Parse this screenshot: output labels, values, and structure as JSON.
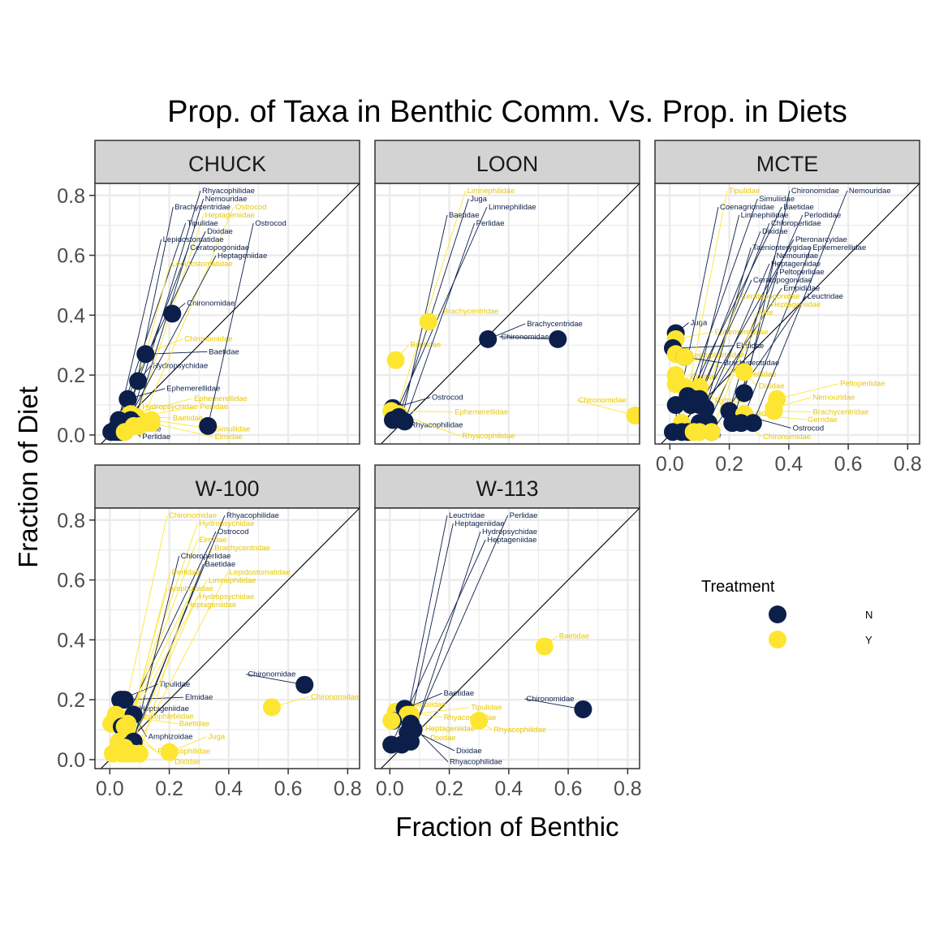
{
  "chart_data": {
    "type": "scatter",
    "title": "Prop. of Taxa in Benthic Comm. Vs. Prop. in Diets",
    "xlabel": "Fraction of Benthic",
    "ylabel": "Fraction of Diet",
    "xlim": [
      -0.05,
      0.84
    ],
    "ylim": [
      -0.03,
      0.84
    ],
    "x_ticks": [
      "0.0",
      "0.2",
      "0.4",
      "0.6",
      "0.8"
    ],
    "y_ticks": [
      "0.0",
      "0.2",
      "0.4",
      "0.6",
      "0.8"
    ],
    "reference_line": "y = x",
    "grid": true,
    "legend": {
      "title": "Treatment",
      "position": "right",
      "entries": [
        {
          "label": "N",
          "color": "#0b1f4a"
        },
        {
          "label": "Y",
          "color": "#fde532"
        }
      ]
    },
    "colors": {
      "N": "#0b1f4a",
      "Y": "#fde532",
      "strip": "#d3d3d3",
      "grid": "#ebebeb",
      "panel_border": "#333333"
    },
    "panels": [
      {
        "name": "CHUCK",
        "points": [
          {
            "label": "Chironomidae",
            "x": 0.21,
            "y": 0.405,
            "t": "N"
          },
          {
            "label": "Chironomidae",
            "x": 0.12,
            "y": 0.27,
            "t": "Y"
          },
          {
            "label": "Baetidae",
            "x": 0.12,
            "y": 0.27,
            "t": "N"
          },
          {
            "label": "Perlidae",
            "x": 0.09,
            "y": 0.06,
            "t": "Y"
          },
          {
            "label": "Baetidae",
            "x": 0.08,
            "y": 0.06,
            "t": "Y"
          },
          {
            "label": "Hydropsychidae",
            "x": 0.095,
            "y": 0.18,
            "t": "N"
          },
          {
            "label": "Ephemerellidae",
            "x": 0.06,
            "y": 0.12,
            "t": "N"
          },
          {
            "label": "Ephemerellidae",
            "x": 0.07,
            "y": 0.07,
            "t": "Y"
          },
          {
            "label": "Hydropsychidae",
            "x": 0.06,
            "y": 0.06,
            "t": "Y"
          },
          {
            "label": "Elmidae",
            "x": 0.03,
            "y": 0.05,
            "t": "N"
          },
          {
            "label": "Rhyacophilidae",
            "x": 0.07,
            "y": 0.05,
            "t": "N"
          },
          {
            "label": "Nemouridae",
            "x": 0.08,
            "y": 0.04,
            "t": "N"
          },
          {
            "label": "Perlidae",
            "x": 0.06,
            "y": 0.04,
            "t": "N"
          },
          {
            "label": "Brachycentridae",
            "x": 0.06,
            "y": 0.03,
            "t": "N"
          },
          {
            "label": "Elmidae",
            "x": 0.14,
            "y": 0.04,
            "t": "Y"
          },
          {
            "label": "Simuliidae",
            "x": 0.14,
            "y": 0.05,
            "t": "Y"
          },
          {
            "label": "Ostrocod",
            "x": 0.33,
            "y": 0.03,
            "t": "N"
          },
          {
            "label": "Ostrocod",
            "x": 0.1,
            "y": 0.03,
            "t": "Y"
          },
          {
            "label": "Heptageniidae",
            "x": 0.08,
            "y": 0.03,
            "t": "Y"
          },
          {
            "label": "Tipulidae",
            "x": 0.02,
            "y": 0.02,
            "t": "N"
          },
          {
            "label": "Dixidae",
            "x": 0.005,
            "y": 0.01,
            "t": "N"
          },
          {
            "label": "Lepidostomatidae",
            "x": 0.02,
            "y": 0.01,
            "t": "N"
          },
          {
            "label": "Ceratopogonidae",
            "x": 0.03,
            "y": 0.01,
            "t": "N"
          },
          {
            "label": "Heptageniidae",
            "x": 0.04,
            "y": 0.01,
            "t": "N"
          },
          {
            "label": "Lepidostomatidae",
            "x": 0.05,
            "y": 0.01,
            "t": "Y"
          }
        ]
      },
      {
        "name": "LOON",
        "points": [
          {
            "label": "Brachycentridae",
            "x": 0.13,
            "y": 0.378,
            "t": "Y"
          },
          {
            "label": "Brachycentridae",
            "x": 0.33,
            "y": 0.32,
            "t": "N"
          },
          {
            "label": "Chironomidae",
            "x": 0.565,
            "y": 0.32,
            "t": "N"
          },
          {
            "label": "Baetidae",
            "x": 0.02,
            "y": 0.25,
            "t": "Y"
          },
          {
            "label": "Ostrocod",
            "x": 0.01,
            "y": 0.09,
            "t": "N"
          },
          {
            "label": "Rhyacophilidae",
            "x": 0.02,
            "y": 0.08,
            "t": "N"
          },
          {
            "label": "Ephemerellidae",
            "x": 0.005,
            "y": 0.08,
            "t": "Y"
          },
          {
            "label": "Limnephilidae",
            "x": 0.02,
            "y": 0.07,
            "t": "Y"
          },
          {
            "label": "Rhyacophilidae",
            "x": 0.03,
            "y": 0.07,
            "t": "Y"
          },
          {
            "label": "Juga",
            "x": 0.03,
            "y": 0.06,
            "t": "N"
          },
          {
            "label": "Baetidae",
            "x": 0.04,
            "y": 0.05,
            "t": "N"
          },
          {
            "label": "Perlidae",
            "x": 0.05,
            "y": 0.045,
            "t": "N"
          },
          {
            "label": "Limnephilidae",
            "x": 0.01,
            "y": 0.05,
            "t": "N"
          },
          {
            "label": "Chironomidae",
            "x": 0.825,
            "y": 0.065,
            "t": "Y"
          }
        ]
      },
      {
        "name": "MCTE",
        "points": [
          {
            "label": "Juga",
            "x": 0.02,
            "y": 0.34,
            "t": "N"
          },
          {
            "label": "Ephemerellidae",
            "x": 0.02,
            "y": 0.32,
            "t": "Y"
          },
          {
            "label": "Elmidae",
            "x": 0.01,
            "y": 0.29,
            "t": "N"
          },
          {
            "label": "Leptophlebiidae",
            "x": 0.02,
            "y": 0.27,
            "t": "Y"
          },
          {
            "label": "Brachycentridae",
            "x": 0.05,
            "y": 0.26,
            "t": "N"
          },
          {
            "label": "Perlidae",
            "x": 0.05,
            "y": 0.26,
            "t": "Y"
          },
          {
            "label": "Ostrocod",
            "x": 0.02,
            "y": 0.2,
            "t": "Y"
          },
          {
            "label": "Simuliidae",
            "x": 0.02,
            "y": 0.2,
            "t": "Y"
          },
          {
            "label": "Dixidae",
            "x": 0.25,
            "y": 0.21,
            "t": "Y"
          },
          {
            "label": "Elmidae",
            "x": 0.02,
            "y": 0.17,
            "t": "Y"
          },
          {
            "label": "Baetidae",
            "x": 0.05,
            "y": 0.16,
            "t": "Y"
          },
          {
            "label": "Chironomidae",
            "x": 0.1,
            "y": 0.16,
            "t": "Y"
          },
          {
            "label": "Chironomidae",
            "x": 0.25,
            "y": 0.14,
            "t": "N"
          },
          {
            "label": "Simuliidae",
            "x": 0.06,
            "y": 0.13,
            "t": "N"
          },
          {
            "label": "Limnephilidae",
            "x": 0.08,
            "y": 0.12,
            "t": "N"
          },
          {
            "label": "Chloroperlidae",
            "x": 0.1,
            "y": 0.12,
            "t": "N"
          },
          {
            "label": "Baetidae",
            "x": 0.06,
            "y": 0.12,
            "t": "N"
          },
          {
            "label": "Peltoperlidae",
            "x": 0.36,
            "y": 0.12,
            "t": "Y"
          },
          {
            "label": "Tipulidae",
            "x": 0.02,
            "y": 0.1,
            "t": "N"
          },
          {
            "label": "Dixidae",
            "x": 0.07,
            "y": 0.1,
            "t": "N"
          },
          {
            "label": "Pteronarcyidae",
            "x": 0.1,
            "y": 0.1,
            "t": "N"
          },
          {
            "label": "Taeniopterygidae",
            "x": 0.12,
            "y": 0.09,
            "t": "N"
          },
          {
            "label": "Nemouridae",
            "x": 0.35,
            "y": 0.09,
            "t": "Y"
          },
          {
            "label": "Brachycentridae",
            "x": 0.35,
            "y": 0.08,
            "t": "Y"
          },
          {
            "label": "Ostrocod",
            "x": 0.2,
            "y": 0.08,
            "t": "N"
          },
          {
            "label": "Nemouridae",
            "x": 0.2,
            "y": 0.08,
            "t": "N"
          },
          {
            "label": "Gerridae",
            "x": 0.25,
            "y": 0.07,
            "t": "Y"
          },
          {
            "label": "Tipulidae",
            "x": 0.04,
            "y": 0.04,
            "t": "Y"
          },
          {
            "label": "Peltoperlidae",
            "x": 0.21,
            "y": 0.04,
            "t": "N"
          },
          {
            "label": "Ephemerellidae",
            "x": 0.24,
            "y": 0.04,
            "t": "N"
          },
          {
            "label": "Nemouridae",
            "x": 0.28,
            "y": 0.04,
            "t": "N"
          },
          {
            "label": "Perlodidae",
            "x": 0.13,
            "y": 0.04,
            "t": "N"
          },
          {
            "label": "Heptageniidae",
            "x": 0.1,
            "y": 0.04,
            "t": "N"
          },
          {
            "label": "Coenagrionidae",
            "x": 0.01,
            "y": 0.01,
            "t": "N"
          },
          {
            "label": "Ceratopogonidae",
            "x": 0.04,
            "y": 0.01,
            "t": "N"
          },
          {
            "label": "Empididae",
            "x": 0.06,
            "y": 0.01,
            "t": "N"
          },
          {
            "label": "Leuctridae",
            "x": 0.14,
            "y": 0.01,
            "t": "N"
          },
          {
            "label": "Mite",
            "x": 0.14,
            "y": 0.01,
            "t": "Y"
          },
          {
            "label": "Heptageniidae",
            "x": 0.1,
            "y": 0.01,
            "t": "Y"
          },
          {
            "label": "Ceratopogonidae",
            "x": 0.08,
            "y": 0.01,
            "t": "Y"
          }
        ]
      },
      {
        "name": "W-100",
        "points": [
          {
            "label": "Chironomidae",
            "x": 0.655,
            "y": 0.25,
            "t": "N"
          },
          {
            "label": "Chironomidae",
            "x": 0.545,
            "y": 0.175,
            "t": "Y"
          },
          {
            "label": "Elmidae",
            "x": 0.04,
            "y": 0.2,
            "t": "N"
          },
          {
            "label": "Tipulidae",
            "x": 0.035,
            "y": 0.2,
            "t": "N"
          },
          {
            "label": "Heptageniidae",
            "x": 0.05,
            "y": 0.2,
            "t": "N"
          },
          {
            "label": "Baetidae",
            "x": 0.02,
            "y": 0.15,
            "t": "Y"
          },
          {
            "label": "Rhyacophilidae",
            "x": 0.03,
            "y": 0.14,
            "t": "Y"
          },
          {
            "label": "Amphizoidae",
            "x": 0.08,
            "y": 0.15,
            "t": "N"
          },
          {
            "label": "Dixidae",
            "x": 0.005,
            "y": 0.12,
            "t": "Y"
          },
          {
            "label": "Chironomidae",
            "x": 0.04,
            "y": 0.12,
            "t": "Y"
          },
          {
            "label": "Hydropsychidae",
            "x": 0.06,
            "y": 0.12,
            "t": "Y"
          },
          {
            "label": "Ostrocod",
            "x": 0.04,
            "y": 0.11,
            "t": "N"
          },
          {
            "label": "Leptophlebiidae",
            "x": 0.05,
            "y": 0.11,
            "t": "Y"
          },
          {
            "label": "Elmidae",
            "x": 0.06,
            "y": 0.11,
            "t": "Y"
          },
          {
            "label": "Chloroperlidae",
            "x": 0.08,
            "y": 0.06,
            "t": "N"
          },
          {
            "label": "Baetidae",
            "x": 0.08,
            "y": 0.06,
            "t": "N"
          },
          {
            "label": "Brachycentridae",
            "x": 0.03,
            "y": 0.06,
            "t": "Y"
          },
          {
            "label": "Rhyacophilidae",
            "x": 0.07,
            "y": 0.05,
            "t": "N"
          },
          {
            "label": "Juga",
            "x": 0.2,
            "y": 0.025,
            "t": "Y"
          },
          {
            "label": "Perlidae",
            "x": 0.05,
            "y": 0.04,
            "t": "Y"
          },
          {
            "label": "Amphizoidae",
            "x": 0.04,
            "y": 0.02,
            "t": "Y"
          },
          {
            "label": "Hydropsychidae",
            "x": 0.06,
            "y": 0.02,
            "t": "Y"
          },
          {
            "label": "Lepidostomatidae",
            "x": 0.08,
            "y": 0.02,
            "t": "Y"
          },
          {
            "label": "Heptageniidae",
            "x": 0.1,
            "y": 0.02,
            "t": "Y"
          },
          {
            "label": "Limnephilidae",
            "x": 0.01,
            "y": 0.02,
            "t": "Y"
          }
        ]
      },
      {
        "name": "W-113",
        "points": [
          {
            "label": "Baetidae",
            "x": 0.52,
            "y": 0.378,
            "t": "Y"
          },
          {
            "label": "Chironomidae",
            "x": 0.65,
            "y": 0.168,
            "t": "N"
          },
          {
            "label": "Simuliidae",
            "x": 0.02,
            "y": 0.16,
            "t": "Y"
          },
          {
            "label": "Rhyacophilidae",
            "x": 0.05,
            "y": 0.16,
            "t": "Y"
          },
          {
            "label": "Baetidae",
            "x": 0.05,
            "y": 0.17,
            "t": "N"
          },
          {
            "label": "Tipulidae",
            "x": 0.06,
            "y": 0.15,
            "t": "Y"
          },
          {
            "label": "Heptageniidae",
            "x": 0.07,
            "y": 0.15,
            "t": "Y"
          },
          {
            "label": "Dixidae",
            "x": 0.01,
            "y": 0.13,
            "t": "N"
          },
          {
            "label": "Dixidae",
            "x": 0.005,
            "y": 0.13,
            "t": "Y"
          },
          {
            "label": "Rhyacophilidae",
            "x": 0.3,
            "y": 0.13,
            "t": "Y"
          },
          {
            "label": "Rhyacophilidae",
            "x": 0.07,
            "y": 0.12,
            "t": "N"
          },
          {
            "label": "Perlidae",
            "x": 0.08,
            "y": 0.1,
            "t": "N"
          },
          {
            "label": "Heptageniidae",
            "x": 0.06,
            "y": 0.09,
            "t": "N"
          },
          {
            "label": "Hydropsychidae",
            "x": 0.07,
            "y": 0.06,
            "t": "N"
          },
          {
            "label": "Heptageniidae",
            "x": 0.005,
            "y": 0.05,
            "t": "N"
          },
          {
            "label": "Leuctridae",
            "x": 0.04,
            "y": 0.05,
            "t": "N"
          }
        ]
      }
    ]
  }
}
